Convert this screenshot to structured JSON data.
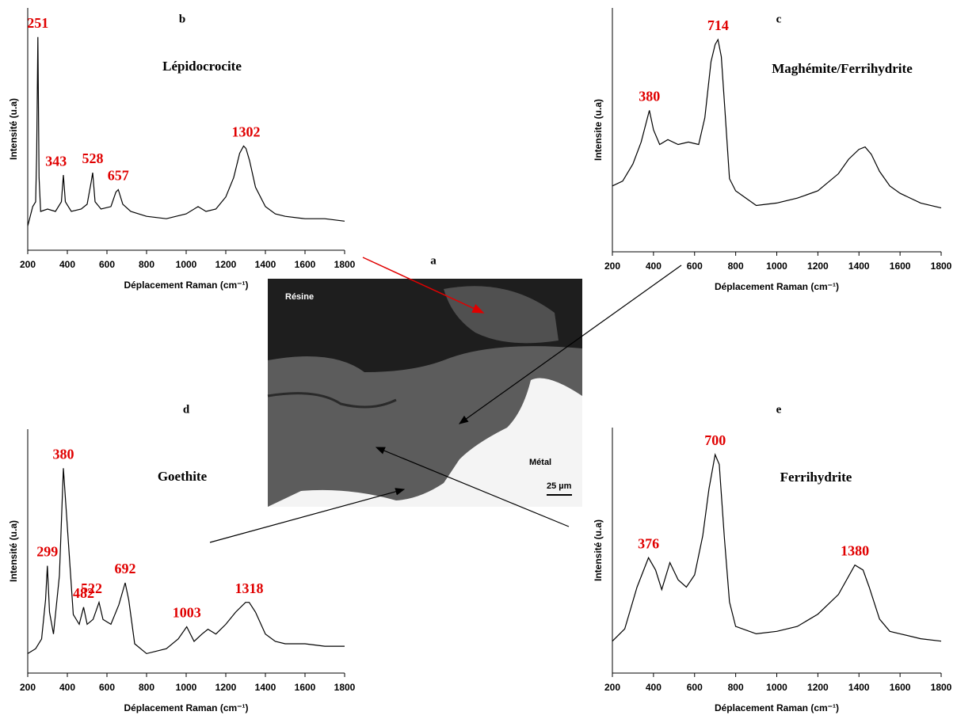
{
  "micrograph": {
    "panel": "a",
    "labels": [
      "Résine",
      "Métal",
      "25 µm"
    ]
  },
  "chart_data": [
    {
      "type": "line",
      "panel": "b",
      "title": "Lépidocrocite",
      "xlabel": "Déplacement Raman (cm⁻¹)",
      "ylabel": "Intensité (u.a)",
      "xlim": [
        200,
        1800
      ],
      "xticks": [
        200,
        400,
        600,
        800,
        1000,
        1200,
        1400,
        1600,
        1800
      ],
      "ylim": [
        0,
        100
      ],
      "color": "#000000",
      "x": [
        200,
        225,
        240,
        245,
        251,
        257,
        265,
        300,
        340,
        370,
        380,
        390,
        420,
        470,
        500,
        520,
        528,
        540,
        570,
        620,
        645,
        657,
        680,
        720,
        800,
        900,
        1000,
        1060,
        1100,
        1150,
        1200,
        1240,
        1270,
        1290,
        1302,
        1320,
        1350,
        1400,
        1450,
        1500,
        1600,
        1700,
        1800
      ],
      "values": [
        10,
        18,
        20,
        40,
        88,
        30,
        16,
        17,
        16,
        20,
        31,
        20,
        16,
        17,
        19,
        28,
        32,
        20,
        17,
        18,
        24,
        25,
        19,
        16,
        14,
        13,
        15,
        18,
        16,
        17,
        22,
        30,
        40,
        43,
        42,
        37,
        26,
        18,
        15,
        14,
        13,
        13,
        12
      ],
      "peaks": [
        251,
        343,
        528,
        657,
        1302
      ]
    },
    {
      "type": "line",
      "panel": "c",
      "title": "Maghémite/Ferrihydrite",
      "xlabel": "Déplacement Raman (cm⁻¹)",
      "ylabel": "Intensite (u.a)",
      "xlim": [
        200,
        1800
      ],
      "xticks": [
        200,
        400,
        600,
        800,
        1000,
        1200,
        1400,
        1600,
        1800
      ],
      "ylim": [
        0,
        100
      ],
      "color": "#000000",
      "x": [
        200,
        250,
        300,
        340,
        380,
        400,
        430,
        470,
        520,
        570,
        620,
        650,
        680,
        700,
        714,
        730,
        750,
        770,
        800,
        850,
        900,
        1000,
        1100,
        1200,
        1300,
        1350,
        1400,
        1430,
        1460,
        1500,
        1550,
        1600,
        1700,
        1800
      ],
      "values": [
        27,
        29,
        36,
        45,
        58,
        50,
        44,
        46,
        44,
        45,
        44,
        55,
        78,
        85,
        87,
        80,
        55,
        30,
        25,
        22,
        19,
        20,
        22,
        25,
        32,
        38,
        42,
        43,
        40,
        33,
        27,
        24,
        20,
        18
      ],
      "peaks": [
        380,
        714
      ]
    },
    {
      "type": "line",
      "panel": "d",
      "title": "Goethite",
      "xlabel": "Déplacement Raman (cm⁻¹)",
      "ylabel": "Intensité (u.a)",
      "xlim": [
        200,
        1800
      ],
      "xticks": [
        200,
        400,
        600,
        800,
        1000,
        1200,
        1400,
        1600,
        1800
      ],
      "ylim": [
        0,
        100
      ],
      "color": "#000000",
      "x": [
        200,
        240,
        270,
        290,
        299,
        310,
        330,
        360,
        380,
        400,
        430,
        460,
        482,
        500,
        530,
        560,
        580,
        620,
        660,
        692,
        710,
        740,
        800,
        900,
        960,
        1003,
        1040,
        1080,
        1110,
        1150,
        1200,
        1250,
        1300,
        1318,
        1350,
        1400,
        1450,
        1500,
        1600,
        1700,
        1800
      ],
      "values": [
        8,
        10,
        14,
        30,
        44,
        25,
        16,
        40,
        84,
        60,
        24,
        20,
        27,
        20,
        22,
        29,
        22,
        20,
        28,
        37,
        30,
        12,
        8,
        10,
        14,
        19,
        13,
        16,
        18,
        16,
        20,
        25,
        29,
        29,
        25,
        16,
        13,
        12,
        12,
        11,
        11
      ],
      "peaks": [
        299,
        380,
        482,
        522,
        692,
        1003,
        1318
      ]
    },
    {
      "type": "line",
      "panel": "e",
      "title": "Ferrihydrite",
      "xlabel": "Déplacement Raman (cm⁻¹)",
      "ylabel": "Intensité (u.a)",
      "xlim": [
        200,
        1800
      ],
      "xticks": [
        200,
        400,
        600,
        800,
        1000,
        1200,
        1400,
        1600,
        1800
      ],
      "ylim": [
        0,
        100
      ],
      "color": "#000000",
      "x": [
        200,
        260,
        320,
        376,
        410,
        440,
        480,
        520,
        560,
        600,
        640,
        670,
        700,
        720,
        745,
        770,
        800,
        900,
        1000,
        1100,
        1200,
        1300,
        1380,
        1420,
        1450,
        1500,
        1550,
        1600,
        1700,
        1800
      ],
      "values": [
        13,
        18,
        35,
        47,
        42,
        34,
        45,
        38,
        35,
        40,
        56,
        75,
        89,
        85,
        55,
        29,
        19,
        16,
        17,
        19,
        24,
        32,
        44,
        42,
        35,
        22,
        17,
        16,
        14,
        13
      ],
      "peaks": [
        376,
        700,
        1380
      ]
    }
  ]
}
